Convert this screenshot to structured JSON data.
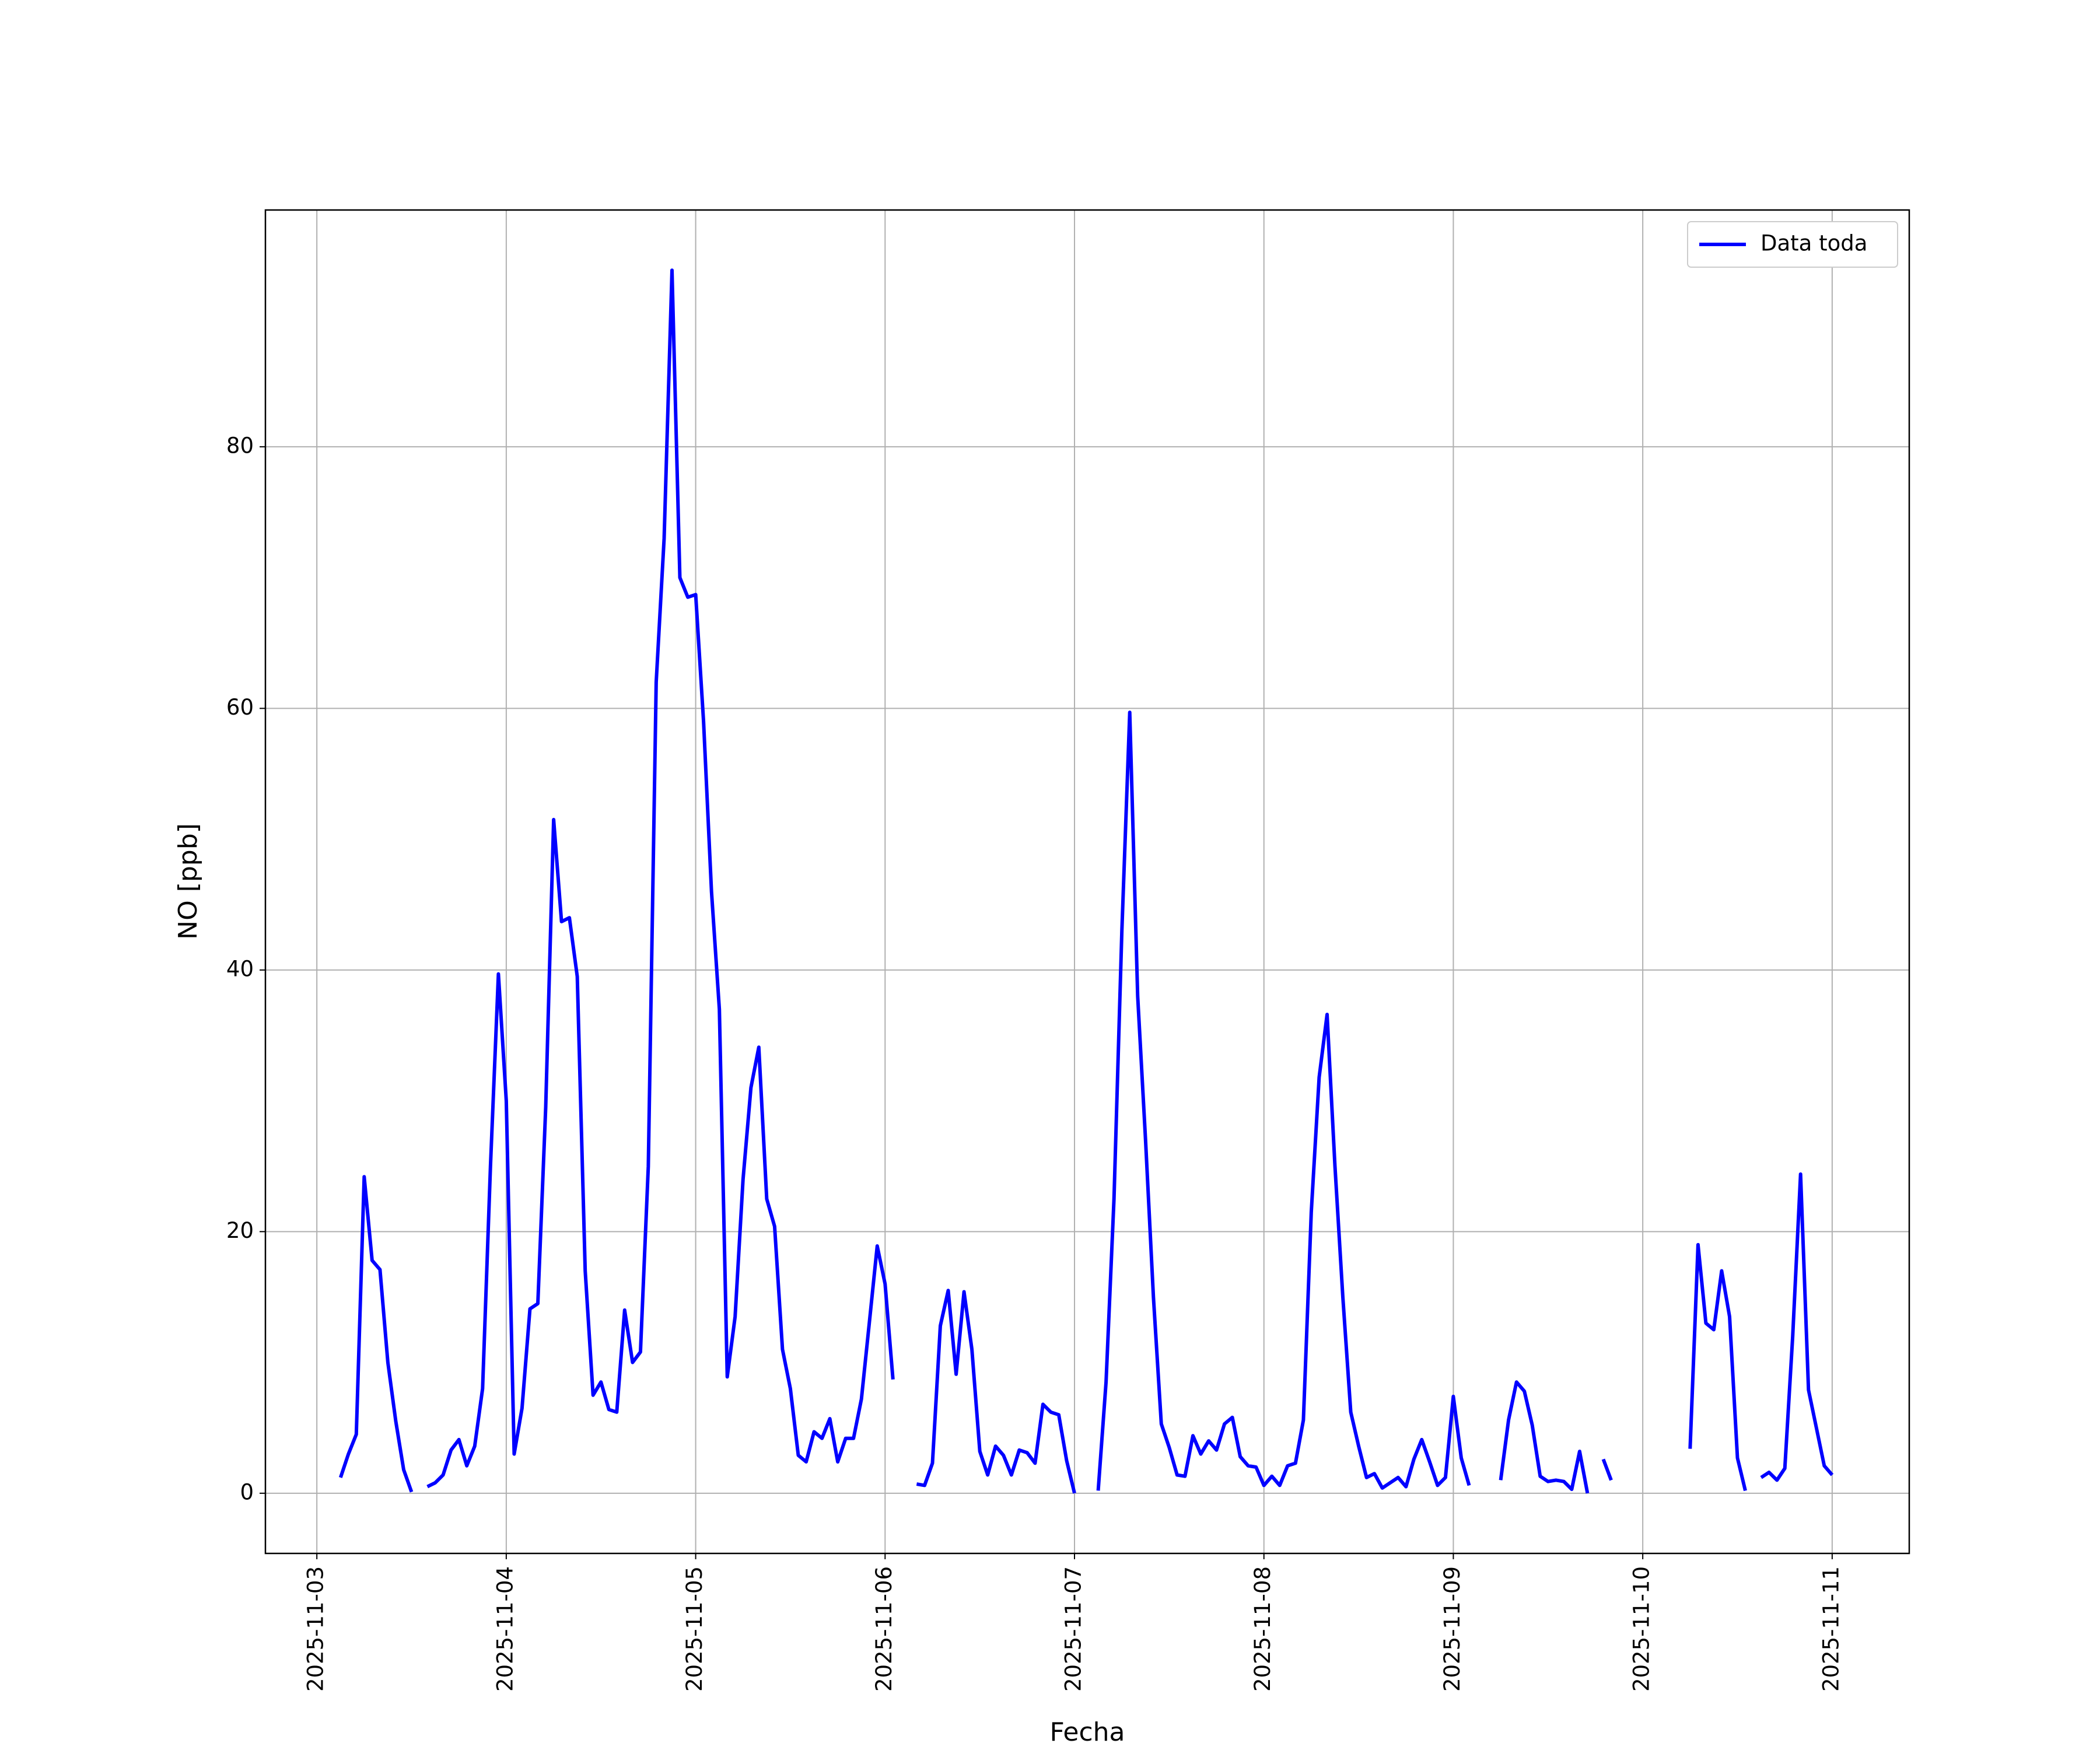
{
  "chart_data": {
    "type": "line",
    "x_label": "Fecha",
    "y_label": "NO [ppb]",
    "x": [
      "2025-11-03 03:00",
      "2025-11-03 04:00",
      "2025-11-03 05:00",
      "2025-11-03 06:00",
      "2025-11-03 07:00",
      "2025-11-03 08:00",
      "2025-11-03 09:00",
      "2025-11-03 10:00",
      "2025-11-03 11:00",
      "2025-11-03 12:00",
      "2025-11-03 13:00",
      "2025-11-03 14:00",
      "2025-11-03 15:00",
      "2025-11-03 16:00",
      "2025-11-03 17:00",
      "2025-11-03 18:00",
      "2025-11-03 19:00",
      "2025-11-03 20:00",
      "2025-11-03 21:00",
      "2025-11-03 22:00",
      "2025-11-03 23:00",
      "2025-11-04 00:00",
      "2025-11-04 01:00",
      "2025-11-04 02:00",
      "2025-11-04 03:00",
      "2025-11-04 04:00",
      "2025-11-04 05:00",
      "2025-11-04 06:00",
      "2025-11-04 07:00",
      "2025-11-04 08:00",
      "2025-11-04 09:00",
      "2025-11-04 10:00",
      "2025-11-04 11:00",
      "2025-11-04 12:00",
      "2025-11-04 13:00",
      "2025-11-04 14:00",
      "2025-11-04 15:00",
      "2025-11-04 16:00",
      "2025-11-04 17:00",
      "2025-11-04 18:00",
      "2025-11-04 19:00",
      "2025-11-04 20:00",
      "2025-11-04 21:00",
      "2025-11-04 22:00",
      "2025-11-04 23:00",
      "2025-11-05 00:00",
      "2025-11-05 01:00",
      "2025-11-05 02:00",
      "2025-11-05 03:00",
      "2025-11-05 04:00",
      "2025-11-05 05:00",
      "2025-11-05 06:00",
      "2025-11-05 07:00",
      "2025-11-05 08:00",
      "2025-11-05 09:00",
      "2025-11-05 10:00",
      "2025-11-05 11:00",
      "2025-11-05 12:00",
      "2025-11-05 13:00",
      "2025-11-05 14:00",
      "2025-11-05 15:00",
      "2025-11-05 16:00",
      "2025-11-05 17:00",
      "2025-11-05 18:00",
      "2025-11-05 19:00",
      "2025-11-05 20:00",
      "2025-11-05 21:00",
      "2025-11-05 22:00",
      "2025-11-05 23:00",
      "2025-11-06 00:00",
      "2025-11-06 01:00",
      "2025-11-06 02:00",
      "2025-11-06 03:00",
      "2025-11-06 04:00",
      "2025-11-06 05:00",
      "2025-11-06 06:00",
      "2025-11-06 07:00",
      "2025-11-06 08:00",
      "2025-11-06 09:00",
      "2025-11-06 10:00",
      "2025-11-06 11:00",
      "2025-11-06 12:00",
      "2025-11-06 13:00",
      "2025-11-06 14:00",
      "2025-11-06 15:00",
      "2025-11-06 16:00",
      "2025-11-06 17:00",
      "2025-11-06 18:00",
      "2025-11-06 19:00",
      "2025-11-06 20:00",
      "2025-11-06 21:00",
      "2025-11-06 22:00",
      "2025-11-06 23:00",
      "2025-11-07 00:00",
      "2025-11-07 01:00",
      "2025-11-07 02:00",
      "2025-11-07 03:00",
      "2025-11-07 04:00",
      "2025-11-07 05:00",
      "2025-11-07 06:00",
      "2025-11-07 07:00",
      "2025-11-07 08:00",
      "2025-11-07 09:00",
      "2025-11-07 10:00",
      "2025-11-07 11:00",
      "2025-11-07 12:00",
      "2025-11-07 13:00",
      "2025-11-07 14:00",
      "2025-11-07 15:00",
      "2025-11-07 16:00",
      "2025-11-07 17:00",
      "2025-11-07 18:00",
      "2025-11-07 19:00",
      "2025-11-07 20:00",
      "2025-11-07 21:00",
      "2025-11-07 22:00",
      "2025-11-07 23:00",
      "2025-11-08 00:00",
      "2025-11-08 01:00",
      "2025-11-08 02:00",
      "2025-11-08 03:00",
      "2025-11-08 04:00",
      "2025-11-08 05:00",
      "2025-11-08 06:00",
      "2025-11-08 07:00",
      "2025-11-08 08:00",
      "2025-11-08 09:00",
      "2025-11-08 10:00",
      "2025-11-08 11:00",
      "2025-11-08 12:00",
      "2025-11-08 13:00",
      "2025-11-08 14:00",
      "2025-11-08 15:00",
      "2025-11-08 16:00",
      "2025-11-08 17:00",
      "2025-11-08 18:00",
      "2025-11-08 19:00",
      "2025-11-08 20:00",
      "2025-11-08 21:00",
      "2025-11-08 22:00",
      "2025-11-08 23:00",
      "2025-11-09 00:00",
      "2025-11-09 01:00",
      "2025-11-09 02:00",
      "2025-11-09 03:00",
      "2025-11-09 04:00",
      "2025-11-09 05:00",
      "2025-11-09 06:00",
      "2025-11-09 07:00",
      "2025-11-09 08:00",
      "2025-11-09 09:00",
      "2025-11-09 10:00",
      "2025-11-09 11:00",
      "2025-11-09 12:00",
      "2025-11-09 13:00",
      "2025-11-09 14:00",
      "2025-11-09 15:00",
      "2025-11-09 16:00",
      "2025-11-09 17:00",
      "2025-11-09 18:00",
      "2025-11-09 19:00",
      "2025-11-09 20:00",
      "2025-11-09 21:00",
      "2025-11-09 22:00",
      "2025-11-09 23:00",
      "2025-11-10 00:00",
      "2025-11-10 01:00",
      "2025-11-10 02:00",
      "2025-11-10 03:00",
      "2025-11-10 04:00",
      "2025-11-10 05:00",
      "2025-11-10 06:00",
      "2025-11-10 07:00",
      "2025-11-10 08:00",
      "2025-11-10 09:00",
      "2025-11-10 10:00",
      "2025-11-10 11:00",
      "2025-11-10 12:00",
      "2025-11-10 13:00",
      "2025-11-10 14:00",
      "2025-11-10 15:00",
      "2025-11-10 16:00",
      "2025-11-10 17:00",
      "2025-11-10 18:00",
      "2025-11-10 19:00",
      "2025-11-10 20:00",
      "2025-11-10 21:00",
      "2025-11-10 22:00",
      "2025-11-10 23:00",
      "2025-11-11 00:00"
    ],
    "series": [
      {
        "name": "Data toda",
        "color": "#0000ff",
        "values": [
          1.2,
          3,
          4.5,
          24.2,
          17.8,
          17.1,
          10,
          5.5,
          1.8,
          0.1,
          null,
          0.5,
          0.8,
          1.4,
          3.3,
          4.1,
          2.1,
          3.6,
          8,
          25,
          39.7,
          30,
          3,
          6.5,
          14.1,
          14.5,
          29.5,
          51.5,
          43.7,
          44,
          39.5,
          17,
          7.5,
          8.5,
          6.4,
          6.2,
          14,
          10,
          10.8,
          25,
          62,
          73,
          93.5,
          70,
          68.5,
          68.7,
          59,
          46,
          37,
          8.9,
          13.5,
          24,
          31,
          34.1,
          22.5,
          20.4,
          11,
          8,
          2.9,
          2.4,
          4.7,
          4.2,
          5.7,
          2.4,
          4.2,
          4.2,
          7.2,
          13,
          18.9,
          16,
          8.7,
          null,
          null,
          0.7,
          0.6,
          2.3,
          12.8,
          15.5,
          9.1,
          15.4,
          11,
          3.2,
          1.4,
          3.6,
          2.9,
          1.4,
          3.3,
          3.1,
          2.3,
          6.8,
          6.2,
          6,
          2.5,
          0,
          null,
          null,
          0.2,
          8.5,
          22.5,
          43,
          59.7,
          38,
          27,
          15,
          5.3,
          3.5,
          1.4,
          1.3,
          4.4,
          3,
          4,
          3.3,
          5.3,
          5.8,
          2.8,
          2.1,
          2,
          0.6,
          1.3,
          0.6,
          2.1,
          2.3,
          5.6,
          21.5,
          31.8,
          36.6,
          25,
          15,
          6.2,
          3.6,
          1.2,
          1.5,
          0.4,
          0.8,
          1.2,
          0.5,
          2.6,
          4.1,
          2.4,
          0.6,
          1.2,
          7.4,
          2.7,
          0.6,
          null,
          null,
          null,
          1,
          5.6,
          8.5,
          7.8,
          5.2,
          1.3,
          0.9,
          1,
          0.9,
          0.3,
          3.2,
          0,
          null,
          2.6,
          1,
          null,
          null,
          null,
          null,
          null,
          null,
          null,
          null,
          null,
          3.4,
          19,
          13,
          12.5,
          17,
          13.5,
          2.7,
          0.2,
          null,
          1.2,
          1.6,
          1,
          1.9,
          12,
          24.4,
          7.9,
          5,
          2.1,
          1.4
        ]
      }
    ],
    "xlim": [
      "2025-11-02 17:29",
      "2025-11-11 09:46"
    ],
    "xticks": [
      "2025-11-03",
      "2025-11-04",
      "2025-11-05",
      "2025-11-06",
      "2025-11-07",
      "2025-11-08",
      "2025-11-09",
      "2025-11-10",
      "2025-11-11"
    ],
    "ylim": [
      -4.6,
      98.1
    ],
    "yticks": [
      0,
      20,
      40,
      60,
      80
    ],
    "grid": true,
    "legend": "upper right"
  }
}
